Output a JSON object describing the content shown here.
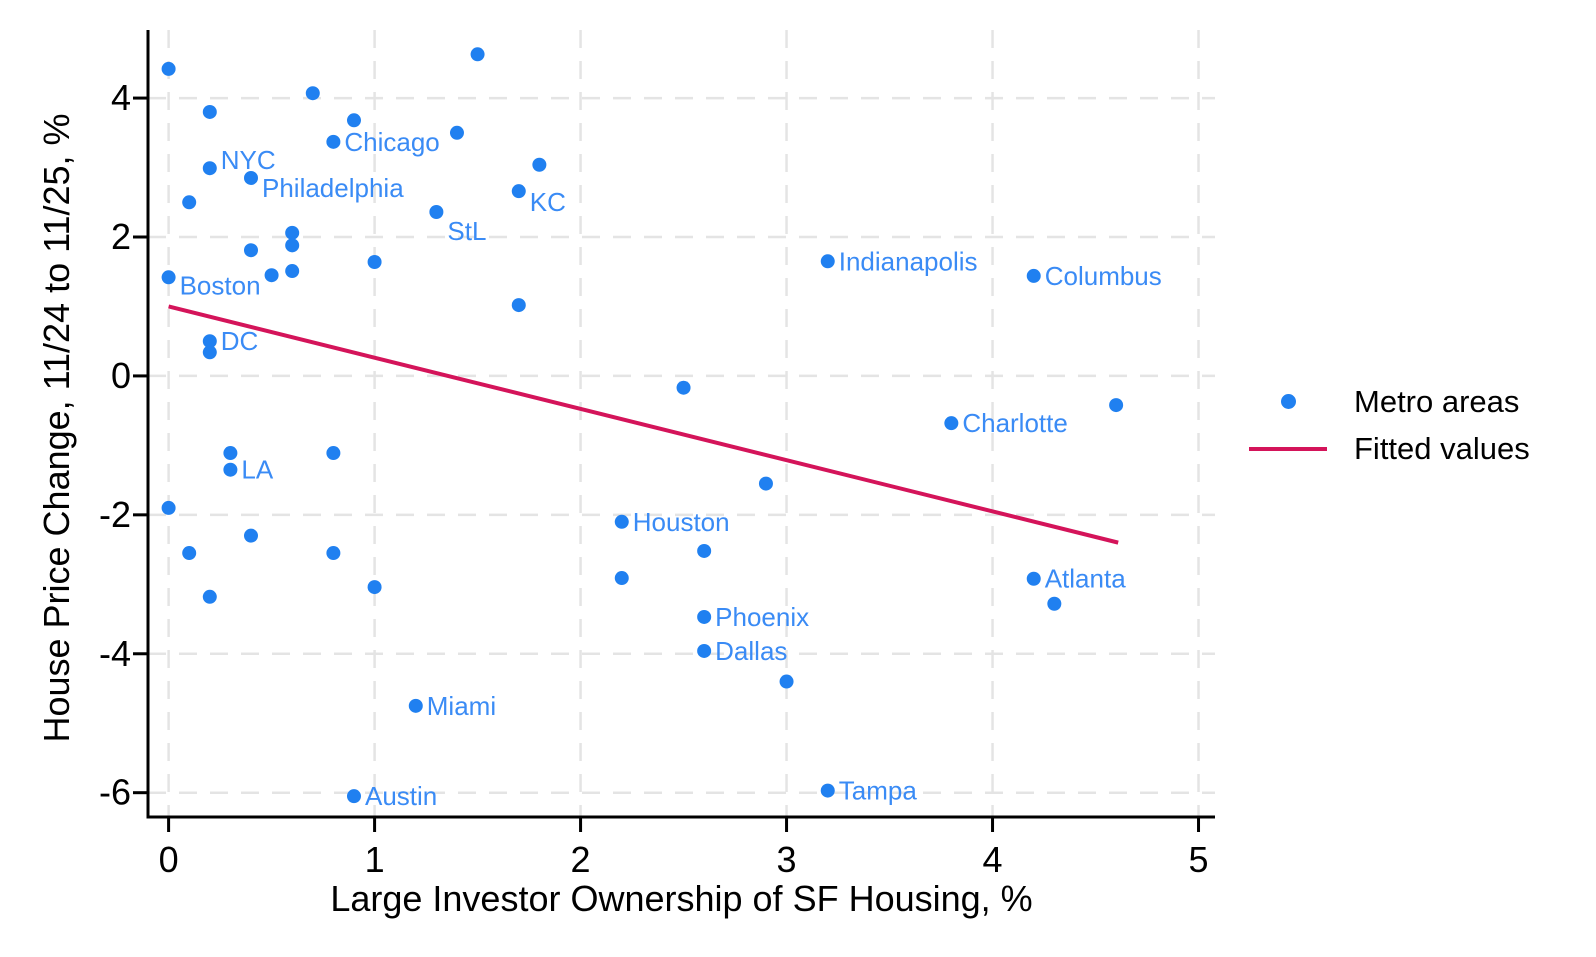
{
  "chart_data": {
    "type": "scatter",
    "title": "",
    "xlabel": "Large Investor Ownership of SF Housing, %",
    "ylabel": "House Price Change, 11/24 to 11/25, %",
    "xlim": [
      -0.1,
      5.08
    ],
    "ylim": [
      -6.35,
      4.98
    ],
    "x_ticks": [
      0,
      1,
      2,
      3,
      4,
      5
    ],
    "y_ticks": [
      4,
      2,
      0,
      -2,
      -4,
      -6
    ],
    "grid": "dashed",
    "legend": {
      "position": "right-middle",
      "entries": [
        {
          "type": "marker",
          "label": "Metro areas"
        },
        {
          "type": "line",
          "label": "Fitted values"
        }
      ]
    },
    "colors": {
      "marker": "#2080f0",
      "marker_label": "#3a8bf5",
      "fit_line": "#d4145a",
      "grid": "#e4e4e4",
      "axis": "#000000"
    },
    "series": [
      {
        "name": "Metro areas",
        "type": "scatter",
        "points": [
          {
            "x": 0.0,
            "y": 4.42
          },
          {
            "x": 1.5,
            "y": 4.63
          },
          {
            "x": 0.7,
            "y": 4.07
          },
          {
            "x": 0.2,
            "y": 3.8
          },
          {
            "x": 0.9,
            "y": 3.68
          },
          {
            "x": 1.4,
            "y": 3.5
          },
          {
            "x": 0.8,
            "y": 3.37,
            "label": "Chicago"
          },
          {
            "x": 1.8,
            "y": 3.04
          },
          {
            "x": 0.2,
            "y": 2.99,
            "label": "NYC",
            "ldy": -8
          },
          {
            "x": 0.4,
            "y": 2.85,
            "label": "Philadelphia",
            "ldy": 10
          },
          {
            "x": 1.7,
            "y": 2.66,
            "label": "KC",
            "ldy": 11
          },
          {
            "x": 0.1,
            "y": 2.5
          },
          {
            "x": 1.3,
            "y": 2.36,
            "label": "StL",
            "ldy": 19
          },
          {
            "x": 0.6,
            "y": 2.06
          },
          {
            "x": 0.6,
            "y": 1.88
          },
          {
            "x": 0.4,
            "y": 1.81
          },
          {
            "x": 3.2,
            "y": 1.65,
            "label": "Indianapolis"
          },
          {
            "x": 1.0,
            "y": 1.64
          },
          {
            "x": 0.6,
            "y": 1.51
          },
          {
            "x": 0.5,
            "y": 1.45
          },
          {
            "x": 4.2,
            "y": 1.44,
            "label": "Columbus"
          },
          {
            "x": 0.0,
            "y": 1.42,
            "label": "Boston",
            "ldy": 8
          },
          {
            "x": 1.7,
            "y": 1.02
          },
          {
            "x": 0.2,
            "y": 0.5,
            "label": "DC"
          },
          {
            "x": 0.2,
            "y": 0.34
          },
          {
            "x": 2.5,
            "y": -0.17
          },
          {
            "x": 4.6,
            "y": -0.42
          },
          {
            "x": 3.8,
            "y": -0.68,
            "label": "Charlotte"
          },
          {
            "x": 0.3,
            "y": -1.11
          },
          {
            "x": 0.8,
            "y": -1.11
          },
          {
            "x": 0.3,
            "y": -1.35,
            "label": "LA"
          },
          {
            "x": 2.9,
            "y": -1.55
          },
          {
            "x": 0.0,
            "y": -1.9
          },
          {
            "x": 2.2,
            "y": -2.1,
            "label": "Houston"
          },
          {
            "x": 0.4,
            "y": -2.3
          },
          {
            "x": 0.1,
            "y": -2.55
          },
          {
            "x": 0.8,
            "y": -2.55
          },
          {
            "x": 2.6,
            "y": -2.52
          },
          {
            "x": 2.2,
            "y": -2.91
          },
          {
            "x": 4.2,
            "y": -2.92,
            "label": "Atlanta"
          },
          {
            "x": 1.0,
            "y": -3.04
          },
          {
            "x": 0.2,
            "y": -3.18
          },
          {
            "x": 4.3,
            "y": -3.28
          },
          {
            "x": 2.6,
            "y": -3.47,
            "label": "Phoenix"
          },
          {
            "x": 2.6,
            "y": -3.96,
            "label": "Dallas"
          },
          {
            "x": 3.0,
            "y": -4.4
          },
          {
            "x": 1.2,
            "y": -4.75,
            "label": "Miami"
          },
          {
            "x": 0.9,
            "y": -6.05,
            "label": "Austin"
          },
          {
            "x": 3.2,
            "y": -5.97,
            "label": "Tampa"
          }
        ]
      },
      {
        "name": "Fitted values",
        "type": "line",
        "points": [
          {
            "x": 0.0,
            "y": 1.0
          },
          {
            "x": 4.61,
            "y": -2.4
          }
        ]
      }
    ]
  }
}
